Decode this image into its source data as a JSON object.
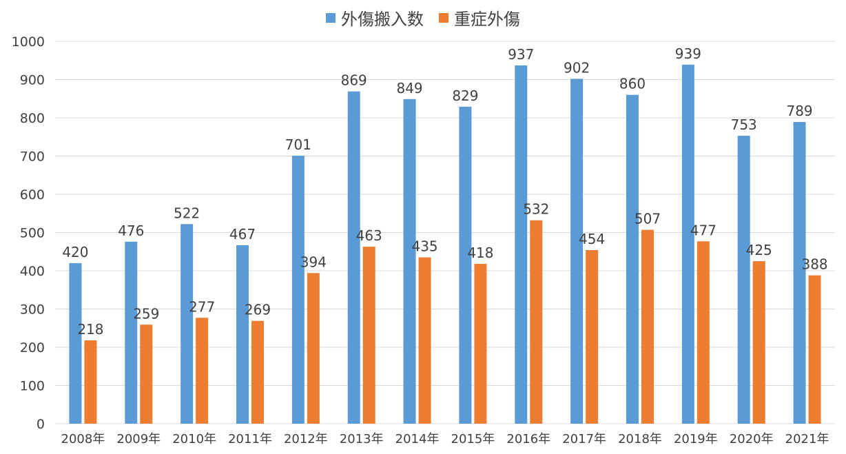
{
  "chart_data": {
    "type": "bar",
    "title": "",
    "xlabel": "",
    "ylabel": "",
    "categories": [
      "2008年",
      "2009年",
      "2010年",
      "2011年",
      "2012年",
      "2013年",
      "2014年",
      "2015年",
      "2016年",
      "2017年",
      "2018年",
      "2019年",
      "2020年",
      "2021年"
    ],
    "series": [
      {
        "name": "外傷搬入数",
        "color": "#5B9BD5",
        "values": [
          420,
          476,
          522,
          467,
          701,
          869,
          849,
          829,
          937,
          902,
          860,
          939,
          753,
          789
        ]
      },
      {
        "name": "重症外傷",
        "color": "#ED7D31",
        "values": [
          218,
          259,
          277,
          269,
          394,
          463,
          435,
          418,
          532,
          454,
          507,
          477,
          425,
          388
        ]
      }
    ],
    "ylim": [
      0,
      1000
    ],
    "yticks": [
      0,
      100,
      200,
      300,
      400,
      500,
      600,
      700,
      800,
      900,
      1000
    ],
    "grid": true,
    "legend": "top-center",
    "data_labels": true
  }
}
